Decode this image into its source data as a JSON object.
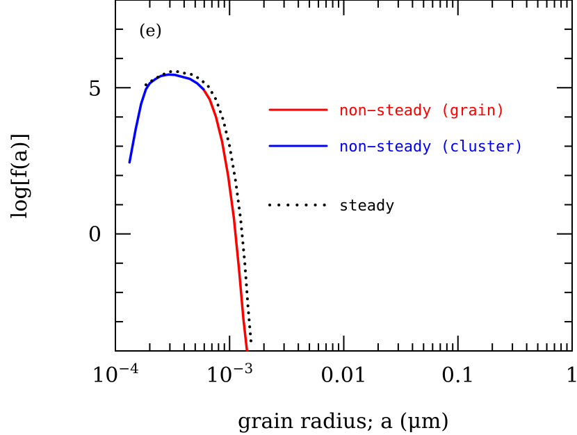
{
  "chart_data": {
    "type": "line",
    "panel_label": "(e)",
    "xlabel": "grain radius; a (μm)",
    "ylabel": "log[f(a)]",
    "xscale": "log",
    "xlim": [
      0.0001,
      1
    ],
    "ylim": [
      -4,
      8
    ],
    "grid": false,
    "legend_position": "right",
    "x_ticks": [
      {
        "value": 0.0001,
        "base": "10",
        "exp": "−4"
      },
      {
        "value": 0.001,
        "base": "10",
        "exp": "−3"
      },
      {
        "value": 0.01,
        "label": "0.01"
      },
      {
        "value": 0.1,
        "label": "0.1"
      },
      {
        "value": 1,
        "label": "1"
      }
    ],
    "y_ticks": [
      {
        "value": 0,
        "label": "0"
      },
      {
        "value": 5,
        "label": "5"
      }
    ],
    "series": [
      {
        "name": "non−steady (grain)",
        "color": "#ff0000",
        "style": "solid",
        "x": [
          0.00059,
          0.00067,
          0.00076,
          0.00086,
          0.00097,
          0.00109,
          0.00121,
          0.00132,
          0.00142
        ],
        "y": [
          4.95,
          4.6,
          4.0,
          3.15,
          2.0,
          0.55,
          -1.2,
          -2.9,
          -4.0
        ]
      },
      {
        "name": "non−steady (cluster)",
        "color": "#0000ff",
        "style": "solid",
        "x": [
          0.000133,
          0.00015,
          0.000168,
          0.000185,
          0.0002,
          0.000225,
          0.00025,
          0.00029,
          0.00033,
          0.00038,
          0.00045,
          0.00052,
          0.00059
        ],
        "y": [
          2.45,
          3.55,
          4.45,
          4.95,
          5.15,
          5.3,
          5.4,
          5.45,
          5.44,
          5.38,
          5.3,
          5.15,
          4.95
        ]
      },
      {
        "name": "steady",
        "color": "#000000",
        "style": "dotted",
        "x": [
          0.000185,
          0.00022,
          0.00026,
          0.0003,
          0.00035,
          0.0004,
          0.00047,
          0.00055,
          0.00065,
          0.00076,
          0.00088,
          0.001,
          0.00113,
          0.00125,
          0.00136,
          0.00145,
          0.00155
        ],
        "y": [
          5.1,
          5.3,
          5.45,
          5.55,
          5.55,
          5.5,
          5.45,
          5.3,
          5.05,
          4.6,
          3.9,
          3.0,
          1.8,
          0.5,
          -1.0,
          -2.5,
          -3.8
        ]
      }
    ]
  }
}
